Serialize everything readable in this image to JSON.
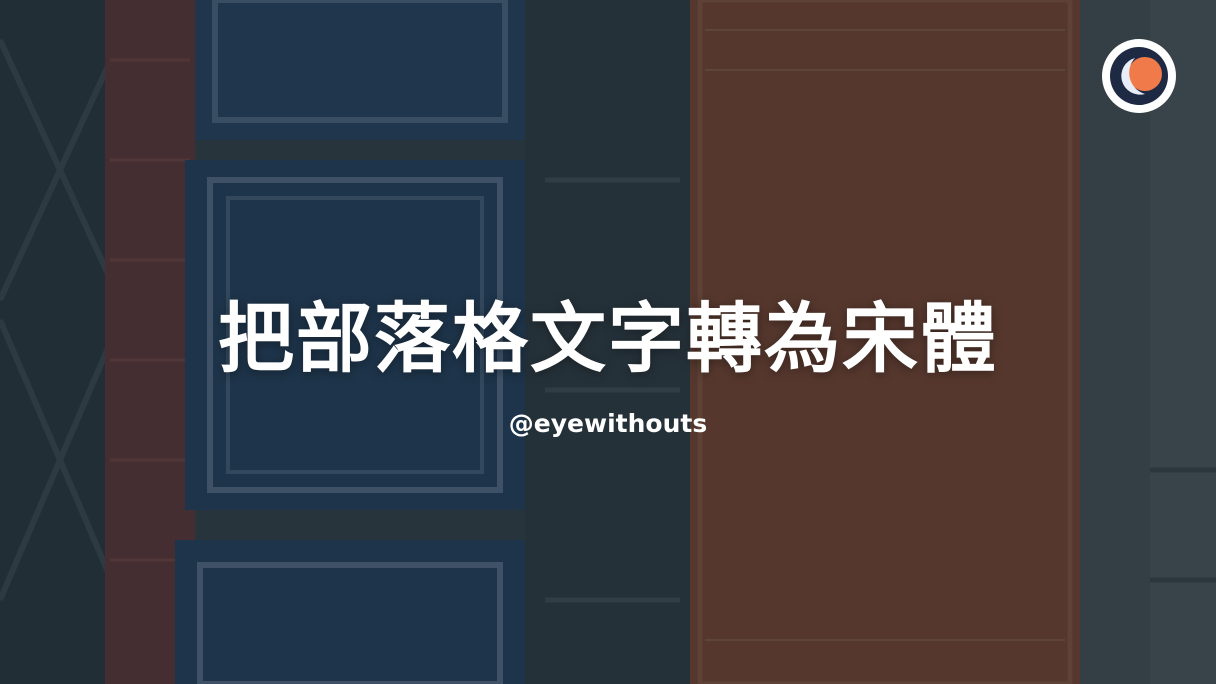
{
  "post": {
    "title": "把部落格文字轉為宋體",
    "author_handle": "@eyewithouts"
  },
  "logo": {
    "icon": "eclipse-logo-icon",
    "accent": "#f07a4a"
  },
  "theme": {
    "overlay": "#1c262e",
    "text": "#ffffff"
  }
}
